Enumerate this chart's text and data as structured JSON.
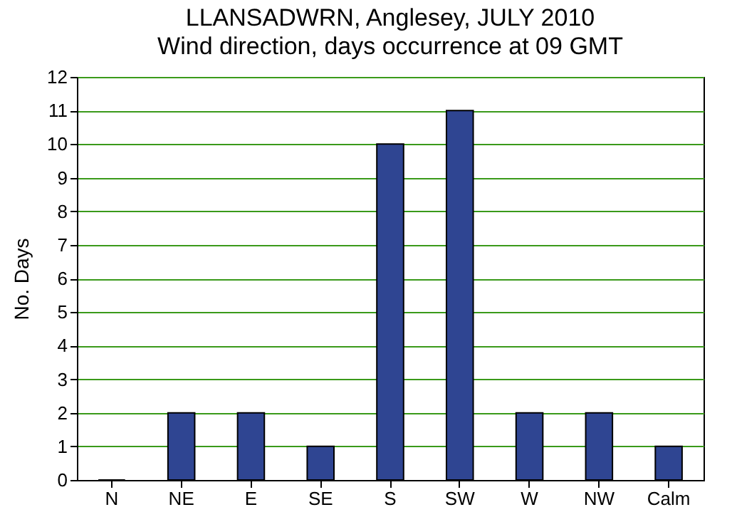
{
  "chart_data": {
    "type": "bar",
    "title": "LLANSADWRN, Anglesey, JULY 2010",
    "subtitle": "Wind direction, days occurrence at 09 GMT",
    "ylabel": "No. Days",
    "categories": [
      "N",
      "NE",
      "E",
      "SE",
      "S",
      "SW",
      "W",
      "NW",
      "Calm"
    ],
    "values": [
      0,
      2,
      2,
      1,
      10,
      11,
      2,
      2,
      1
    ],
    "color": "#2f4592",
    "ylim": [
      0,
      12
    ],
    "yticks": [
      0,
      1,
      2,
      3,
      4,
      5,
      6,
      7,
      8,
      9,
      10,
      11,
      12
    ],
    "grid": "y"
  }
}
